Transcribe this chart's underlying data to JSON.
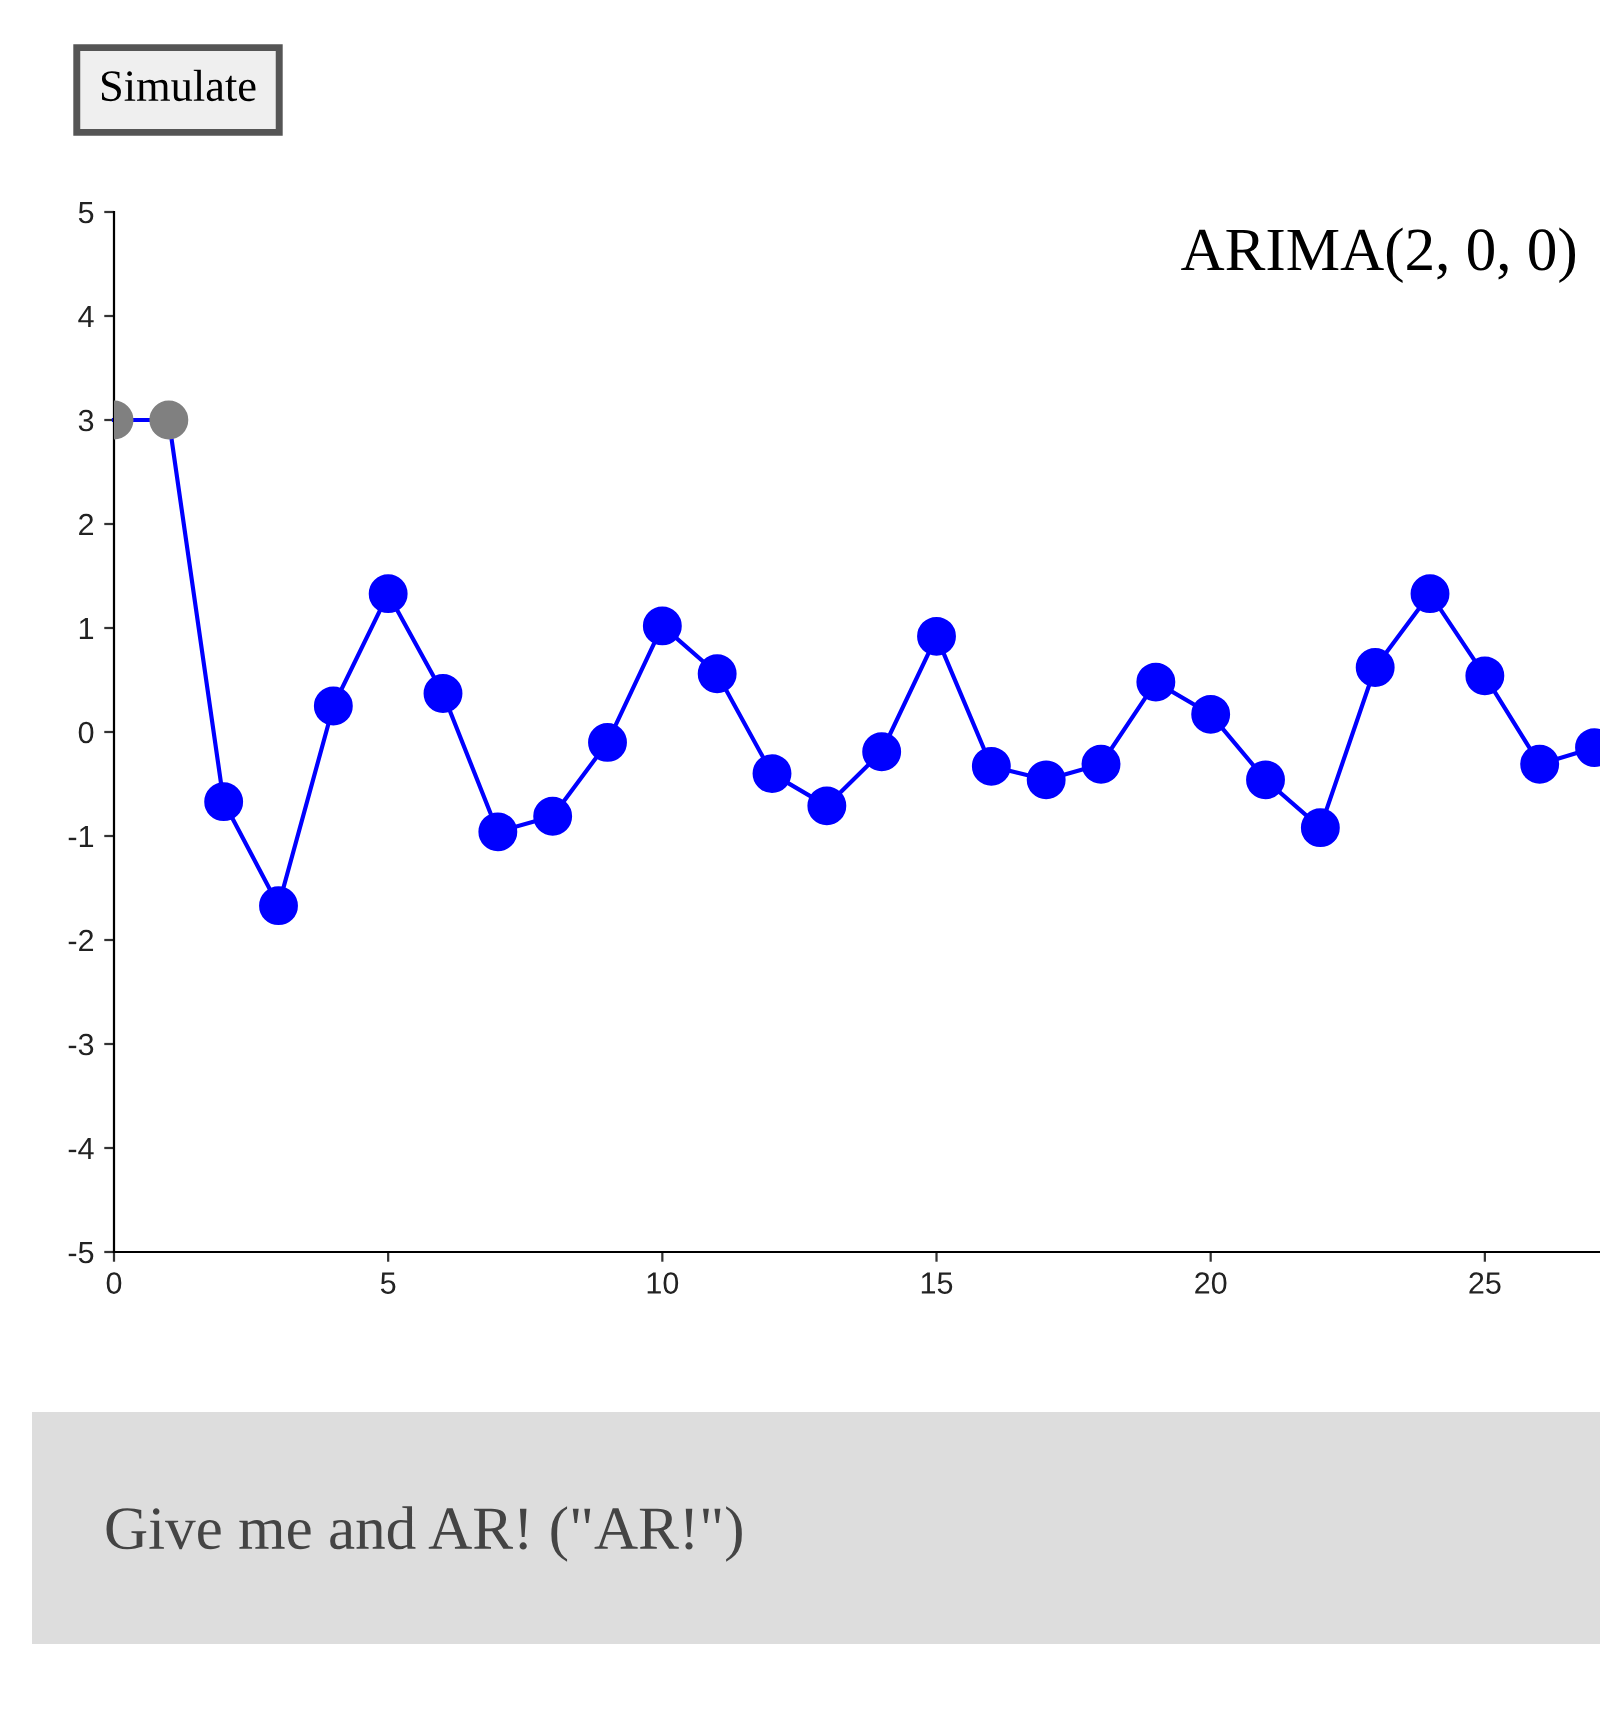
{
  "chart_data": {
    "type": "line",
    "title": "ARIMA(2, 0, 0)",
    "x": [
      0,
      1,
      2,
      3,
      4,
      5,
      6,
      7,
      8,
      9,
      10,
      11,
      12,
      13,
      14,
      15,
      16,
      17,
      18,
      19,
      20,
      21,
      22,
      23,
      24,
      25,
      26,
      27
    ],
    "series": [
      {
        "color": "#0000ff",
        "marker": "circle",
        "colors": [
          "#808080",
          "#808080",
          "#0000ff",
          "#0000ff",
          "#0000ff",
          "#0000ff",
          "#0000ff",
          "#0000ff",
          "#0000ff",
          "#0000ff",
          "#0000ff",
          "#0000ff",
          "#0000ff",
          "#0000ff",
          "#0000ff",
          "#0000ff",
          "#0000ff",
          "#0000ff",
          "#0000ff",
          "#0000ff",
          "#0000ff",
          "#0000ff",
          "#0000ff",
          "#0000ff",
          "#0000ff",
          "#0000ff",
          "#0000ff",
          "#0000ff"
        ],
        "values": [
          3,
          3,
          -0.67,
          -1.67,
          0.25,
          1.33,
          0.37,
          -0.96,
          -0.81,
          -0.1,
          1.02,
          0.56,
          -0.4,
          -0.71,
          -0.19,
          0.92,
          -0.33,
          -0.46,
          -0.31,
          0.48,
          0.17,
          -0.46,
          -0.92,
          0.62,
          1.33,
          0.54,
          -0.31,
          -0.15
        ]
      }
    ],
    "xlim": [
      0,
      27.1
    ],
    "xticks": [
      0,
      5,
      10,
      15,
      20,
      25
    ],
    "ylim": [
      -5,
      5
    ],
    "yticks": [
      -5,
      -4,
      -3,
      -2,
      -1,
      0,
      1,
      2,
      3,
      4,
      5
    ],
    "annotations": [
      "Simulate",
      "Give me and AR! (\"AR!\")"
    ]
  }
}
